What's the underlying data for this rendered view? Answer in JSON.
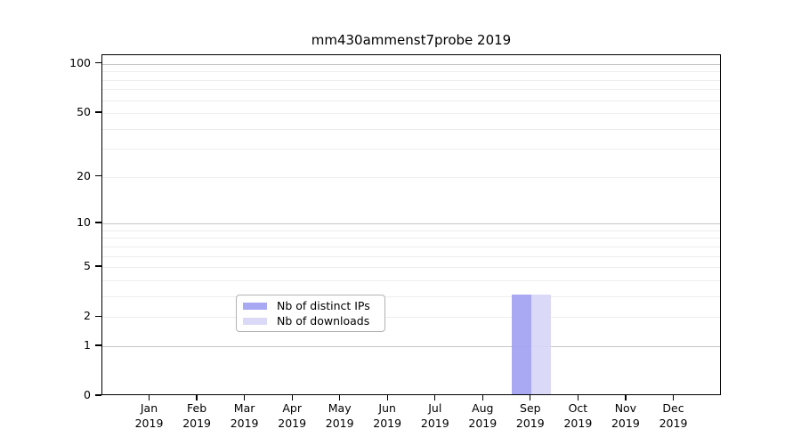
{
  "chart_data": {
    "type": "bar",
    "title": "mm430ammenst7probe 2019",
    "categories": [
      "Jan",
      "Feb",
      "Mar",
      "Apr",
      "May",
      "Jun",
      "Jul",
      "Aug",
      "Sep",
      "Oct",
      "Nov",
      "Dec"
    ],
    "category_year_label": "2019",
    "series": [
      {
        "name": "Nb of distinct IPs",
        "color": "#9f9ff2",
        "values": [
          0,
          0,
          0,
          0,
          0,
          0,
          0,
          0,
          3,
          0,
          0,
          0
        ]
      },
      {
        "name": "Nb of downloads",
        "color": "#d6d6f7",
        "values": [
          0,
          0,
          0,
          0,
          0,
          0,
          0,
          0,
          3,
          0,
          0,
          0
        ]
      }
    ],
    "xlabel": "",
    "ylabel": "",
    "yscale": "log1p",
    "ylim": [
      0,
      113
    ],
    "yticks": [
      0,
      1,
      2,
      5,
      10,
      20,
      50,
      100
    ],
    "major_gridlines": [
      1,
      10,
      100
    ],
    "minor_gridlines": [
      2,
      3,
      4,
      5,
      6,
      7,
      8,
      9,
      20,
      30,
      40,
      50,
      60,
      70,
      80,
      90
    ],
    "grid": "horizontal",
    "legend_position": "lower center"
  }
}
